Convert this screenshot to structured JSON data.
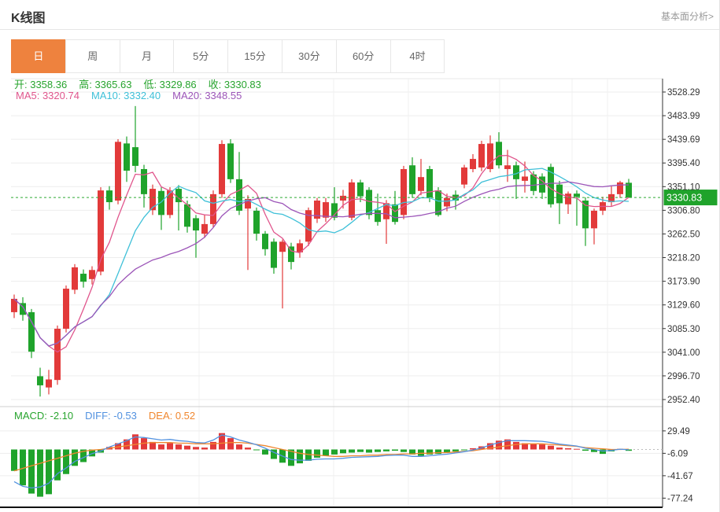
{
  "header": {
    "title": "K线图",
    "link_label": "基本面分析>"
  },
  "tabs": {
    "selected_index": 0,
    "items": [
      "日",
      "周",
      "月",
      "5分",
      "15分",
      "30分",
      "60分",
      "4时"
    ]
  },
  "ohlc_legend": {
    "color": "#28a42e",
    "items": [
      {
        "label": "开",
        "value": "3358.36"
      },
      {
        "label": "高",
        "value": "3365.63"
      },
      {
        "label": "低",
        "value": "3329.86"
      },
      {
        "label": "收",
        "value": "3330.83"
      }
    ]
  },
  "ma_legend": {
    "items": [
      {
        "label": "MA5",
        "value": "3320.74",
        "color": "#e0558c"
      },
      {
        "label": "MA10",
        "value": "3332.40",
        "color": "#3fc0d8"
      },
      {
        "label": "MA20",
        "value": "3348.55",
        "color": "#9c55b8"
      }
    ]
  },
  "macd_legend": {
    "items": [
      {
        "label": "MACD",
        "value": "-2.10",
        "color": "#28a42e"
      },
      {
        "label": "DIFF",
        "value": "-0.53",
        "color": "#5292e0"
      },
      {
        "label": "DEA",
        "value": "0.52",
        "color": "#f0872f"
      }
    ]
  },
  "colors": {
    "up": "#e23a3a",
    "down": "#1fa32b",
    "tab_selected_bg": "#ee823e",
    "grid": "#ededed",
    "vgrid": "#f0f0f0",
    "axis_text": "#333333",
    "axis_line": "#333333",
    "dashed_line": "#2daa35",
    "price_tag_bg": "#1fa32b",
    "price_tag_text": "#ffffff",
    "diff_line": "#5292e0",
    "dea_line": "#f0872f",
    "pane_divider": "#cfcfcf",
    "bottom_border": "#111111",
    "zero_dash": "#bbbbbb"
  },
  "chart_data": {
    "type": "candlestick+macd",
    "title": "K线图",
    "interval": "日",
    "price_axis": {
      "ticks": [
        "3528.29",
        "3483.99",
        "3439.69",
        "3395.40",
        "3351.10",
        "3306.80",
        "3262.50",
        "3218.20",
        "3173.90",
        "3129.60",
        "3085.30",
        "3041.00",
        "2996.70",
        "2952.40"
      ],
      "tick_values": [
        3528.29,
        3483.99,
        3439.69,
        3395.4,
        3351.1,
        3306.8,
        3262.5,
        3218.2,
        3173.9,
        3129.6,
        3085.3,
        3041.0,
        2996.7,
        2952.4
      ],
      "last_price": 3330.83,
      "last_price_label": "3330.83"
    },
    "macd_axis": {
      "ticks": [
        "29.49",
        "-6.09",
        "-41.67",
        "-77.24"
      ],
      "tick_values": [
        29.49,
        -6.09,
        -41.67,
        -77.24
      ]
    },
    "ohlc_current": {
      "open": 3358.36,
      "high": 3365.63,
      "low": 3329.86,
      "close": 3330.83
    },
    "ma_values": {
      "MA5": 3320.74,
      "MA10": 3332.4,
      "MA20": 3348.55
    },
    "macd_values": {
      "MACD": -2.1,
      "DIFF": -0.53,
      "DEA": 0.52
    },
    "ma_periods": [
      5,
      10,
      20
    ],
    "candles": [
      [
        3116,
        3149,
        3105,
        3141
      ],
      [
        3133,
        3144,
        3100,
        3111
      ],
      [
        3116,
        3122,
        3030,
        3042
      ],
      [
        2996,
        3012,
        2958,
        2979
      ],
      [
        2975,
        3008,
        2962,
        2990
      ],
      [
        2989,
        3091,
        2980,
        3085
      ],
      [
        3085,
        3166,
        3078,
        3160
      ],
      [
        3158,
        3206,
        3150,
        3200
      ],
      [
        3188,
        3196,
        3162,
        3173
      ],
      [
        3178,
        3202,
        3168,
        3195
      ],
      [
        3192,
        3350,
        3185,
        3344
      ],
      [
        3344,
        3352,
        3308,
        3322
      ],
      [
        3325,
        3440,
        3318,
        3435
      ],
      [
        3432,
        3445,
        3360,
        3381
      ],
      [
        3425,
        3502,
        3378,
        3390
      ],
      [
        3384,
        3392,
        3312,
        3337
      ],
      [
        3307,
        3355,
        3298,
        3347
      ],
      [
        3343,
        3350,
        3270,
        3298
      ],
      [
        3298,
        3350,
        3292,
        3344
      ],
      [
        3347,
        3354,
        3269,
        3322
      ],
      [
        3318,
        3325,
        3265,
        3276
      ],
      [
        3292,
        3298,
        3218,
        3269
      ],
      [
        3263,
        3298,
        3255,
        3281
      ],
      [
        3281,
        3344,
        3275,
        3337
      ],
      [
        3337,
        3438,
        3330,
        3431
      ],
      [
        3432,
        3440,
        3358,
        3365
      ],
      [
        3365,
        3416,
        3298,
        3306
      ],
      [
        3310,
        3335,
        3195,
        3328
      ],
      [
        3306,
        3312,
        3250,
        3263
      ],
      [
        3263,
        3268,
        3222,
        3234
      ],
      [
        3248,
        3254,
        3188,
        3199
      ],
      [
        3229,
        3252,
        3123,
        3248
      ],
      [
        3239,
        3246,
        3196,
        3210
      ],
      [
        3228,
        3252,
        3218,
        3245
      ],
      [
        3248,
        3312,
        3240,
        3307
      ],
      [
        3291,
        3330,
        3283,
        3325
      ],
      [
        3293,
        3330,
        3285,
        3322
      ],
      [
        3320,
        3350,
        3288,
        3293
      ],
      [
        3325,
        3345,
        3310,
        3334
      ],
      [
        3293,
        3365,
        3288,
        3359
      ],
      [
        3359,
        3364,
        3322,
        3333
      ],
      [
        3345,
        3350,
        3290,
        3298
      ],
      [
        3307,
        3338,
        3278,
        3285
      ],
      [
        3290,
        3326,
        3244,
        3320
      ],
      [
        3318,
        3343,
        3280,
        3285
      ],
      [
        3298,
        3390,
        3290,
        3384
      ],
      [
        3391,
        3406,
        3330,
        3337
      ],
      [
        3343,
        3403,
        3335,
        3369
      ],
      [
        3384,
        3390,
        3322,
        3331
      ],
      [
        3344,
        3350,
        3295,
        3298
      ],
      [
        3314,
        3338,
        3305,
        3330
      ],
      [
        3336,
        3344,
        3308,
        3325
      ],
      [
        3355,
        3392,
        3348,
        3387
      ],
      [
        3384,
        3412,
        3378,
        3403
      ],
      [
        3387,
        3437,
        3380,
        3431
      ],
      [
        3384,
        3447,
        3378,
        3432
      ],
      [
        3435,
        3453,
        3385,
        3391
      ],
      [
        3384,
        3420,
        3360,
        3391
      ],
      [
        3391,
        3398,
        3328,
        3365
      ],
      [
        3362,
        3398,
        3340,
        3370
      ],
      [
        3374,
        3380,
        3335,
        3343
      ],
      [
        3370,
        3376,
        3328,
        3340
      ],
      [
        3388,
        3394,
        3312,
        3318
      ],
      [
        3355,
        3362,
        3281,
        3320
      ],
      [
        3318,
        3342,
        3300,
        3338
      ],
      [
        3338,
        3344,
        3278,
        3332
      ],
      [
        3325,
        3331,
        3240,
        3273
      ],
      [
        3273,
        3310,
        3243,
        3306
      ],
      [
        3306,
        3332,
        3298,
        3322
      ],
      [
        3322,
        3352,
        3315,
        3337
      ],
      [
        3337,
        3362,
        3330,
        3359
      ],
      [
        3358.36,
        3365.63,
        3329.86,
        3330.83
      ]
    ],
    "macd": {
      "note": "hist = 2*(DIFF-DEA); diff derived as dea + hist/2",
      "dea": [
        -34,
        -30,
        -26,
        -22,
        -18,
        -14,
        -10,
        -6,
        -3,
        -1,
        0,
        2,
        4,
        6,
        8,
        10,
        11,
        11,
        11,
        10,
        10,
        9,
        9,
        9,
        10,
        11,
        11,
        10,
        8,
        6,
        3,
        0,
        -3,
        -6,
        -8,
        -9,
        -10,
        -11,
        -11,
        -10,
        -10,
        -9,
        -9,
        -8,
        -8,
        -7,
        -7,
        -6,
        -6,
        -5,
        -5,
        -4,
        -3,
        -2,
        0,
        2,
        4,
        6,
        8,
        9,
        9,
        9,
        8,
        7,
        6,
        5,
        3,
        2,
        1,
        0,
        0,
        0.52
      ],
      "hist": [
        -34,
        -57,
        -70,
        -75,
        -71,
        -49,
        -39,
        -26,
        -20,
        -11,
        -5,
        4,
        10,
        16,
        24,
        18,
        12,
        8,
        10,
        8,
        6,
        4,
        3,
        12,
        26,
        18,
        8,
        3,
        -1,
        -8,
        -15,
        -21,
        -26,
        -22,
        -18,
        -13,
        -10,
        -8,
        -6,
        -5,
        -4,
        -5,
        -4,
        -3,
        -2,
        -4,
        -8,
        -10,
        -8,
        -7,
        -5,
        -3,
        -1,
        2,
        5,
        10,
        14,
        16,
        12,
        10,
        9,
        8,
        6,
        3,
        2,
        1,
        -2,
        -4,
        -7,
        -3,
        1,
        -2.1
      ]
    }
  }
}
